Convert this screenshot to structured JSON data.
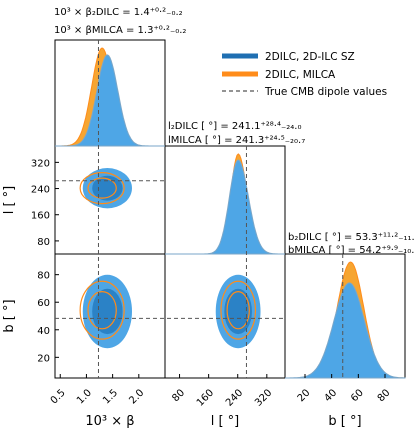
{
  "chart_data": {
    "type": "corner",
    "parameters": [
      {
        "key": "beta",
        "label": "10³ × β",
        "range": [
          0.4,
          2.5
        ],
        "ticks": [
          0.5,
          1.0,
          1.5,
          2.0
        ],
        "tick_labels": [
          "0.5",
          "1.0",
          "1.5",
          "2.0"
        ],
        "true_value": 1.23
      },
      {
        "key": "l",
        "label": "l [ °]",
        "range": [
          40,
          370
        ],
        "ticks": [
          80,
          160,
          240,
          320
        ],
        "tick_labels": [
          "80",
          "160",
          "240",
          "320"
        ],
        "true_value": 264
      },
      {
        "key": "b",
        "label": "b [ °]",
        "range": [
          5,
          95
        ],
        "ticks": [
          20,
          40,
          60,
          80
        ],
        "tick_labels": [
          "20",
          "40",
          "60",
          "80"
        ],
        "true_value": 48.3
      }
    ],
    "series": [
      {
        "name": "2DILC, 2D-ILC SZ",
        "color": "#1f6fb2",
        "fill": "#4ea6e6",
        "estimates": {
          "beta": {
            "center": 1.4,
            "plus": 0.2,
            "minus": 0.2
          },
          "l": {
            "center": 241.1,
            "plus": 28.4,
            "minus": 24.0
          },
          "b": {
            "center": 53.3,
            "plus": 11.2,
            "minus": 11.5
          }
        }
      },
      {
        "name": "2DILC, MILCA",
        "color": "#ff8c1a",
        "fill": "#f6a531",
        "estimates": {
          "beta": {
            "center": 1.3,
            "plus": 0.2,
            "minus": 0.2
          },
          "l": {
            "center": 241.3,
            "plus": 24.5,
            "minus": 20.7
          },
          "b": {
            "center": 54.2,
            "plus": 9.9,
            "minus": 10.1
          }
        }
      }
    ],
    "reference_line": {
      "name": "True CMB dipole values",
      "color": "#555555",
      "style": "dashed"
    },
    "titles": {
      "beta": [
        "10³ × β₂DILC = 1.4⁺⁰·²₋₀.₂",
        "10³ × βMILCA = 1.3⁺⁰·²₋₀.₂"
      ],
      "l": [
        "l₂DILC [ °] = 241.1⁺²⁸·⁴₋₂₄.₀",
        "lMILCA [ °] = 241.3⁺²⁴·⁵₋₂₀.₇"
      ],
      "b": [
        "b₂DILC [ °] = 53.3⁺¹¹·²₋₁₁.₅",
        "bMILCA [ °] = 54.2⁺⁹·⁹₋₁₀.₁"
      ]
    },
    "legend_position": "top-right",
    "grid": false
  }
}
